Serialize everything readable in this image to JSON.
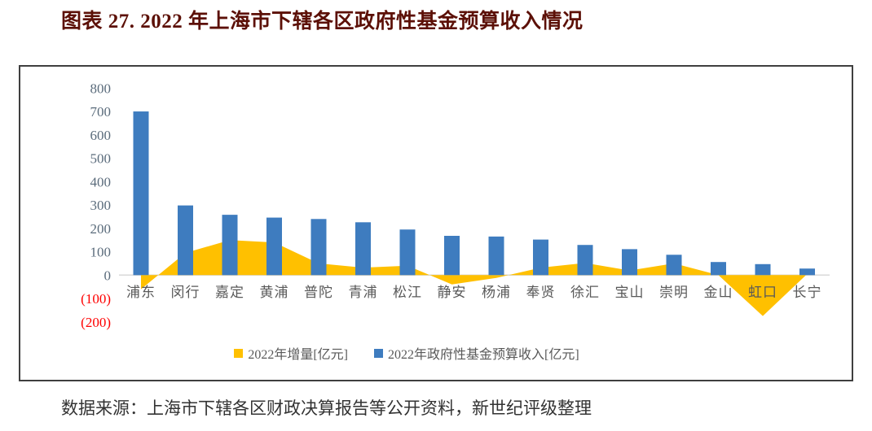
{
  "title": "图表 27. 2022 年上海市下辖各区政府性基金预算收入情况",
  "source": "数据来源：上海市下辖各区财政决算报告等公开资料，新世纪评级整理",
  "colors": {
    "title_text": "#5C1007",
    "bar": "#3E7CBF",
    "area": "#FFC000",
    "axis_tick_label": "#5A6B7B",
    "negative_tick_label": "#FF0000",
    "category_label": "#595959",
    "axis_line": "#D9D9D9",
    "chart_border": "#3F3F3F",
    "legend_text": "#595959",
    "source_text": "#333333"
  },
  "chart_data": {
    "type": "bar",
    "title": "2022 年上海市下辖各区政府性基金预算收入情况",
    "categories": [
      "浦东",
      "闵行",
      "嘉定",
      "黄浦",
      "普陀",
      "青浦",
      "松江",
      "静安",
      "杨浦",
      "奉贤",
      "徐汇",
      "宝山",
      "崇明",
      "金山",
      "虹口",
      "长宁"
    ],
    "series": [
      {
        "name": "2022年增量[亿元]",
        "type": "area",
        "color": "#FFC000",
        "values": [
          -60,
          95,
          150,
          140,
          50,
          32,
          40,
          -40,
          -12,
          32,
          52,
          20,
          50,
          0,
          -175,
          5
        ]
      },
      {
        "name": "2022年政府性基金预算收入[亿元]",
        "type": "bar",
        "color": "#3E7CBF",
        "values": [
          700,
          298,
          258,
          246,
          240,
          226,
          195,
          168,
          165,
          152,
          129,
          111,
          87,
          56,
          47,
          28
        ]
      }
    ],
    "xlabel": "",
    "ylabel": "",
    "ylim": [
      -200,
      800
    ],
    "ytick_step": 100,
    "ytick_labels": [
      "800",
      "700",
      "600",
      "500",
      "400",
      "300",
      "200",
      "100",
      "0",
      "(100)",
      "(200)"
    ],
    "negative_format": "parentheses-red",
    "grid": false,
    "legend_position": "bottom"
  }
}
